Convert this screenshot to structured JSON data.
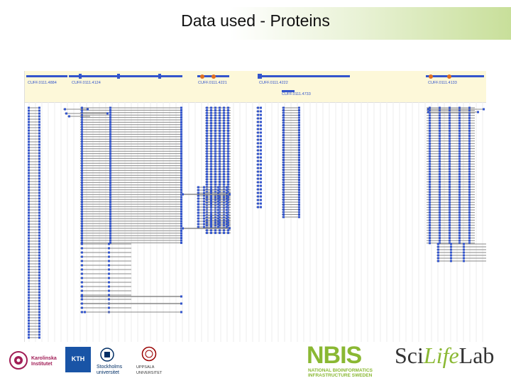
{
  "slide": {
    "title": "Data used - Proteins"
  },
  "gene_labels": [
    "CUFF.0111.4884",
    "CUFF.0111.4124",
    "CUFF.0111.4221",
    "CUFF.0111.4222",
    "CUFF.0111.4733",
    "CUFF.0111.4133"
  ],
  "logos": {
    "karolinska": "Karolinska Institutet",
    "kth": "KTH",
    "stockholm": "Stockholms universitet",
    "uppsala": "UPPSALA UNIVERSITET",
    "nbis_letters": "NBIS",
    "nbis_subtitle": "NATIONAL BIOINFORMATICS INFRASTRUCTURE SWEDEN",
    "scilife_a": "Sci",
    "scilife_b": "Life",
    "scilife_c": "Lab"
  },
  "colors": {
    "exon": "#3355cc",
    "intron": "#888888",
    "highlight": "#e07020",
    "track_bg": "#fdf8d9",
    "nbis_green": "#8ab833"
  }
}
